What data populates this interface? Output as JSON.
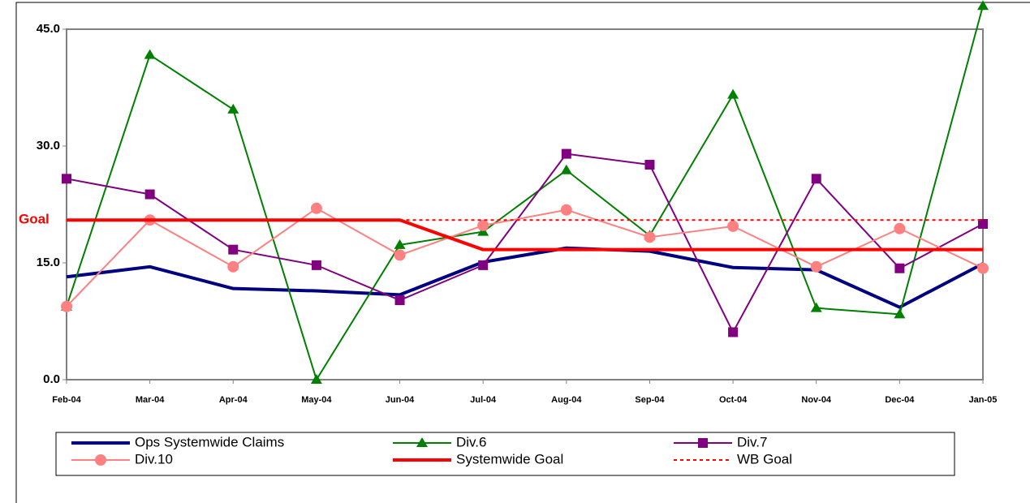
{
  "chart_data": {
    "type": "line",
    "annotation": "Goal",
    "categories": [
      "Feb-04",
      "Mar-04",
      "Apr-04",
      "May-04",
      "Jun-04",
      "Jul-04",
      "Aug-04",
      "Sep-04",
      "Oct-04",
      "Nov-04",
      "Dec-04",
      "Jan-05"
    ],
    "ylim": [
      0,
      45
    ],
    "yticks": [
      {
        "value": 0,
        "label": "0.0"
      },
      {
        "value": 15,
        "label": "15.0"
      },
      {
        "value": 30,
        "label": "30.0"
      },
      {
        "value": 45,
        "label": "45.0"
      }
    ],
    "legend": "bottom",
    "series": [
      {
        "name": "Ops Systemwide Claims",
        "color": "#000080",
        "values": [
          13.2,
          14.5,
          11.7,
          11.4,
          10.9,
          15.1,
          16.9,
          16.5,
          14.4,
          14.1,
          9.3,
          14.9
        ]
      },
      {
        "name": "Div.6",
        "color": "#008000",
        "marker": "triangle",
        "values": [
          9.4,
          41.7,
          34.7,
          0,
          17.3,
          19.0,
          26.9,
          18.5,
          36.6,
          9.2,
          8.4,
          48
        ]
      },
      {
        "name": "Div.7",
        "color": "#800080",
        "marker": "square",
        "values": [
          25.8,
          23.8,
          16.7,
          14.7,
          10.2,
          14.7,
          29.0,
          27.6,
          6.1,
          25.8,
          14.3,
          20.0
        ]
      },
      {
        "name": "Div.10",
        "color": "#ff8080",
        "marker": "circle",
        "values": [
          9.4,
          20.5,
          14.5,
          22.0,
          16.0,
          19.8,
          21.8,
          18.3,
          19.7,
          14.5,
          19.4,
          14.3
        ]
      },
      {
        "name": "Systemwide Goal",
        "color": "#ff0000",
        "values": [
          20.5,
          20.5,
          20.5,
          20.5,
          20.5,
          16.7,
          16.7,
          16.7,
          16.7,
          16.7,
          16.7,
          16.7
        ]
      },
      {
        "name": "WB Goal",
        "color": "#ff0000",
        "dash": true,
        "values": [
          null,
          null,
          null,
          null,
          20.5,
          20.5,
          20.5,
          20.5,
          20.5,
          20.5,
          20.5,
          20.5
        ]
      }
    ]
  }
}
